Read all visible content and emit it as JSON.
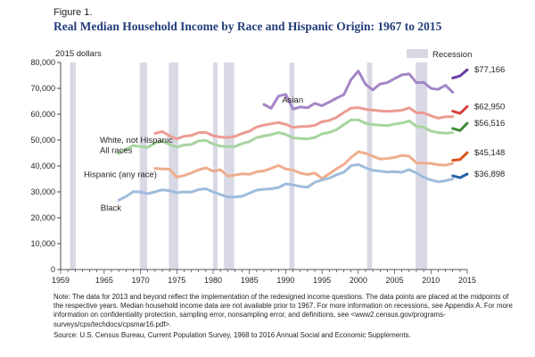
{
  "figure_label": "Figure 1.",
  "title": "Real Median Household Income by Race and Hispanic Origin: 1967 to 2015",
  "y_unit_label": "2015 dollars",
  "legend": {
    "recession_label": "Recession",
    "recession_color": "#d9d9e6"
  },
  "note": "Note: The data for 2013 and beyond reflect the implementation of the redesigned income questions. The data points are placed at the midpoints of the respective years. Median household income data are not available prior to 1967. For more information on recessions, see Appendix A. For more information on confidentiality protection, sampling error, nonsampling error, and definitions, see <www2.census.gov/programs-surveys/cps/techdocs/cpsmar16.pdf>.",
  "source": "Source: U.S. Census Bureau, Current Population Survey, 1968 to 2016 Annual Social and Economic Supplements.",
  "chart_data": {
    "type": "line",
    "xlim": [
      1959,
      2015
    ],
    "ylim": [
      0,
      80000
    ],
    "x_ticks": [
      1959,
      1965,
      1970,
      1975,
      1980,
      1985,
      1990,
      1995,
      2000,
      2005,
      2010,
      2015
    ],
    "x_tick_labels": [
      "1959",
      "1965",
      "1970",
      "1975",
      "1980",
      "1985",
      "1990",
      "1995",
      "2000",
      "2005",
      "2010",
      "2015"
    ],
    "y_ticks": [
      0,
      10000,
      20000,
      30000,
      40000,
      50000,
      60000,
      70000,
      80000
    ],
    "y_tick_labels": [
      "0",
      "10,000",
      "20,000",
      "30,000",
      "40,000",
      "50,000",
      "60,000",
      "70,000",
      "80,000"
    ],
    "recessions": [
      [
        1960.3,
        1961.1
      ],
      [
        1969.9,
        1970.9
      ],
      [
        1973.9,
        1975.2
      ],
      [
        1980.0,
        1980.6
      ],
      [
        1981.5,
        1982.9
      ],
      [
        1990.5,
        1991.2
      ],
      [
        2001.2,
        2001.9
      ],
      [
        2007.9,
        2009.5
      ]
    ],
    "series": [
      {
        "name": "Asian",
        "label": "Asian",
        "color": "#a486c6",
        "end_color": "#6b3fa0",
        "end_label": "$77,166",
        "label_pos": [
          1989.5,
          64500
        ],
        "segments": [
          [
            [
              1987,
              63800
            ],
            [
              1988,
              62300
            ],
            [
              1989,
              67000
            ],
            [
              1990,
              67700
            ],
            [
              1991,
              62000
            ],
            [
              1992,
              62800
            ],
            [
              1993,
              62500
            ],
            [
              1994,
              64200
            ],
            [
              1995,
              63300
            ],
            [
              1996,
              64700
            ],
            [
              1997,
              66200
            ],
            [
              1998,
              67600
            ],
            [
              1999,
              73400
            ],
            [
              2000,
              76700
            ],
            [
              2001,
              71500
            ],
            [
              2002,
              69400
            ],
            [
              2003,
              71700
            ],
            [
              2004,
              72200
            ],
            [
              2005,
              73800
            ],
            [
              2006,
              75200
            ],
            [
              2007,
              75600
            ],
            [
              2008,
              72200
            ],
            [
              2009,
              72300
            ],
            [
              2010,
              70000
            ],
            [
              2011,
              69600
            ],
            [
              2012,
              71200
            ],
            [
              2013,
              68500
            ]
          ],
          [
            [
              2013,
              74000
            ],
            [
              2014,
              74800
            ],
            [
              2015,
              77166
            ]
          ]
        ]
      },
      {
        "name": "White, not Hispanic",
        "label": "White, not Hispanic",
        "color": "#ec9b93",
        "end_color": "#d7403a",
        "end_label": "$62,950",
        "label_pos": [
          1964.4,
          49000
        ],
        "segments": [
          [
            [
              1972,
              52600
            ],
            [
              1973,
              53300
            ],
            [
              1974,
              51700
            ],
            [
              1975,
              50500
            ],
            [
              1976,
              51500
            ],
            [
              1977,
              51800
            ],
            [
              1978,
              52900
            ],
            [
              1979,
              53000
            ],
            [
              1980,
              51700
            ],
            [
              1981,
              51200
            ],
            [
              1982,
              51000
            ],
            [
              1983,
              51400
            ],
            [
              1984,
              52600
            ],
            [
              1985,
              53400
            ],
            [
              1986,
              55100
            ],
            [
              1987,
              55800
            ],
            [
              1988,
              56300
            ],
            [
              1989,
              56800
            ],
            [
              1990,
              56100
            ],
            [
              1991,
              54900
            ],
            [
              1992,
              55200
            ],
            [
              1993,
              55300
            ],
            [
              1994,
              55700
            ],
            [
              1995,
              57100
            ],
            [
              1996,
              57600
            ],
            [
              1997,
              58800
            ],
            [
              1998,
              60700
            ],
            [
              1999,
              62300
            ],
            [
              2000,
              62600
            ],
            [
              2001,
              61900
            ],
            [
              2002,
              61600
            ],
            [
              2003,
              61300
            ],
            [
              2004,
              61100
            ],
            [
              2005,
              61300
            ],
            [
              2006,
              61500
            ],
            [
              2007,
              62500
            ],
            [
              2008,
              60600
            ],
            [
              2009,
              60500
            ],
            [
              2010,
              59400
            ],
            [
              2011,
              58500
            ],
            [
              2012,
              59000
            ],
            [
              2013,
              59100
            ]
          ],
          [
            [
              2013,
              61200
            ],
            [
              2014,
              60300
            ],
            [
              2015,
              62950
            ]
          ]
        ]
      },
      {
        "name": "All races",
        "label": "All races",
        "color": "#a8d4a0",
        "end_color": "#3f8c3a",
        "end_label": "$56,516",
        "label_pos": [
          1964.4,
          45000
        ],
        "segments": [
          [
            [
              1967,
              44800
            ],
            [
              1968,
              46500
            ],
            [
              1969,
              47900
            ],
            [
              1970,
              47500
            ],
            [
              1971,
              47200
            ],
            [
              1972,
              48900
            ],
            [
              1973,
              49600
            ],
            [
              1974,
              48300
            ],
            [
              1975,
              47300
            ],
            [
              1976,
              48100
            ],
            [
              1977,
              48300
            ],
            [
              1978,
              49700
            ],
            [
              1979,
              49900
            ],
            [
              1980,
              48500
            ],
            [
              1981,
              47700
            ],
            [
              1982,
              47500
            ],
            [
              1983,
              47500
            ],
            [
              1984,
              48700
            ],
            [
              1985,
              49400
            ],
            [
              1986,
              51000
            ],
            [
              1987,
              51600
            ],
            [
              1988,
              52100
            ],
            [
              1989,
              52900
            ],
            [
              1990,
              52200
            ],
            [
              1991,
              50900
            ],
            [
              1992,
              50600
            ],
            [
              1993,
              50500
            ],
            [
              1994,
              51000
            ],
            [
              1995,
              52400
            ],
            [
              1996,
              53000
            ],
            [
              1997,
              54000
            ],
            [
              1998,
              56000
            ],
            [
              1999,
              57800
            ],
            [
              2000,
              57800
            ],
            [
              2001,
              56500
            ],
            [
              2002,
              56000
            ],
            [
              2003,
              55800
            ],
            [
              2004,
              55600
            ],
            [
              2005,
              56200
            ],
            [
              2006,
              56600
            ],
            [
              2007,
              57400
            ],
            [
              2008,
              55300
            ],
            [
              2009,
              55000
            ],
            [
              2010,
              53500
            ],
            [
              2011,
              52900
            ],
            [
              2012,
              52700
            ],
            [
              2013,
              52900
            ]
          ],
          [
            [
              2013,
              54500
            ],
            [
              2014,
              53700
            ],
            [
              2015,
              56516
            ]
          ]
        ]
      },
      {
        "name": "Hispanic (any race)",
        "label": "Hispanic (any race)",
        "color": "#efad8d",
        "end_color": "#d8531c",
        "end_label": "$45,148",
        "label_pos": [
          1962.2,
          35700
        ],
        "segments": [
          [
            [
              1972,
              39100
            ],
            [
              1973,
              38900
            ],
            [
              1974,
              38800
            ],
            [
              1975,
              35700
            ],
            [
              1976,
              36300
            ],
            [
              1977,
              37300
            ],
            [
              1978,
              38500
            ],
            [
              1979,
              39300
            ],
            [
              1980,
              38000
            ],
            [
              1981,
              38600
            ],
            [
              1982,
              36100
            ],
            [
              1983,
              36500
            ],
            [
              1984,
              37000
            ],
            [
              1985,
              36800
            ],
            [
              1986,
              37800
            ],
            [
              1987,
              38100
            ],
            [
              1988,
              39100
            ],
            [
              1989,
              40200
            ],
            [
              1990,
              38900
            ],
            [
              1991,
              38400
            ],
            [
              1992,
              37300
            ],
            [
              1993,
              36700
            ],
            [
              1994,
              37300
            ],
            [
              1995,
              35200
            ],
            [
              1996,
              37000
            ],
            [
              1997,
              38900
            ],
            [
              1998,
              40600
            ],
            [
              1999,
              43300
            ],
            [
              2000,
              45500
            ],
            [
              2001,
              44900
            ],
            [
              2002,
              43800
            ],
            [
              2003,
              42700
            ],
            [
              2004,
              42900
            ],
            [
              2005,
              43300
            ],
            [
              2006,
              44100
            ],
            [
              2007,
              43800
            ],
            [
              2008,
              41200
            ],
            [
              2009,
              41100
            ],
            [
              2010,
              41000
            ],
            [
              2011,
              40500
            ],
            [
              2012,
              40300
            ],
            [
              2013,
              41000
            ]
          ],
          [
            [
              2013,
              42200
            ],
            [
              2014,
              42500
            ],
            [
              2015,
              45148
            ]
          ]
        ]
      },
      {
        "name": "Black",
        "label": "Black",
        "color": "#9fbcdc",
        "end_color": "#2463a8",
        "end_label": "$36,898",
        "label_pos": [
          1964.5,
          22700
        ],
        "segments": [
          [
            [
              1967,
              26800
            ],
            [
              1968,
              28200
            ],
            [
              1969,
              30100
            ],
            [
              1970,
              30000
            ],
            [
              1971,
              29300
            ],
            [
              1972,
              30000
            ],
            [
              1973,
              30800
            ],
            [
              1974,
              30500
            ],
            [
              1975,
              29700
            ],
            [
              1976,
              30000
            ],
            [
              1977,
              29900
            ],
            [
              1978,
              30900
            ],
            [
              1979,
              31200
            ],
            [
              1980,
              30000
            ],
            [
              1981,
              29000
            ],
            [
              1982,
              28000
            ],
            [
              1983,
              28000
            ],
            [
              1984,
              28300
            ],
            [
              1985,
              29500
            ],
            [
              1986,
              30700
            ],
            [
              1987,
              31000
            ],
            [
              1988,
              31200
            ],
            [
              1989,
              31700
            ],
            [
              1990,
              33100
            ],
            [
              1991,
              32700
            ],
            [
              1992,
              32100
            ],
            [
              1993,
              31800
            ],
            [
              1994,
              33700
            ],
            [
              1995,
              34600
            ],
            [
              1996,
              35300
            ],
            [
              1997,
              36600
            ],
            [
              1998,
              37600
            ],
            [
              1999,
              40100
            ],
            [
              2000,
              40600
            ],
            [
              2001,
              39300
            ],
            [
              2002,
              38300
            ],
            [
              2003,
              38000
            ],
            [
              2004,
              37700
            ],
            [
              2005,
              37800
            ],
            [
              2006,
              37600
            ],
            [
              2007,
              38600
            ],
            [
              2008,
              37300
            ],
            [
              2009,
              35700
            ],
            [
              2010,
              34600
            ],
            [
              2011,
              33900
            ],
            [
              2012,
              34300
            ],
            [
              2013,
              35000
            ]
          ],
          [
            [
              2013,
              36200
            ],
            [
              2014,
              35500
            ],
            [
              2015,
              36898
            ]
          ]
        ]
      }
    ]
  }
}
